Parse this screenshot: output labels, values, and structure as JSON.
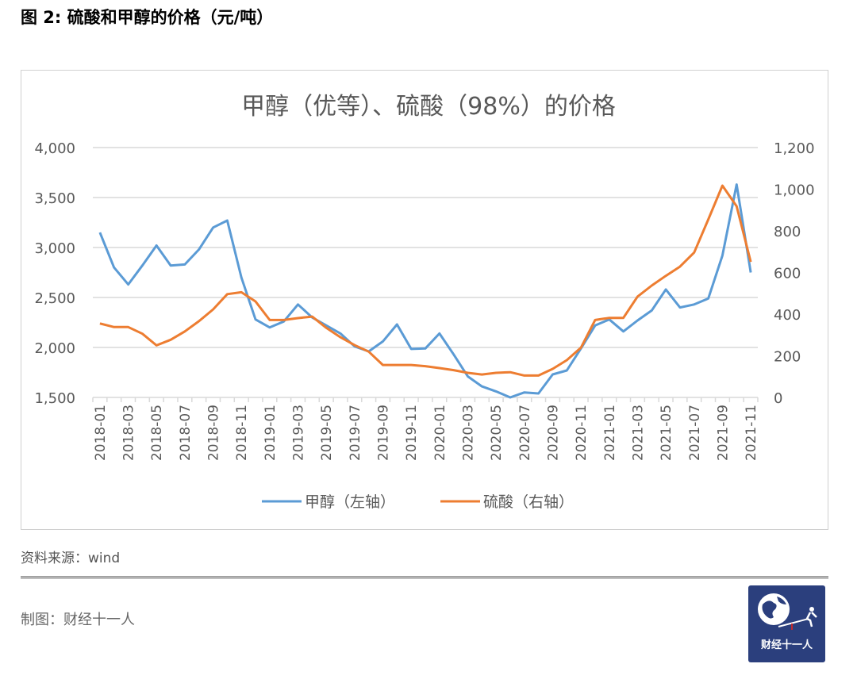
{
  "figure_title": "图 2: 硫酸和甲醇的价格（元/吨）",
  "source": "资料来源：wind",
  "credit": "制图：财经十一人",
  "logo_text": "财经十一人",
  "colors": {
    "methanol": "#5b9bd5",
    "sulfuric_acid": "#ed7d31",
    "grid": "#d9d9d9",
    "logo_bg": "#2b3f7d"
  },
  "chart_data": {
    "type": "line",
    "title": "甲醇（优等）、硫酸（98%）的价格",
    "legend_position": "bottom",
    "grid": true,
    "x": [
      "2018-01",
      "2018-02",
      "2018-03",
      "2018-04",
      "2018-05",
      "2018-06",
      "2018-07",
      "2018-08",
      "2018-09",
      "2018-10",
      "2018-11",
      "2018-12",
      "2019-01",
      "2019-02",
      "2019-03",
      "2019-04",
      "2019-05",
      "2019-06",
      "2019-07",
      "2019-08",
      "2019-09",
      "2019-10",
      "2019-11",
      "2019-12",
      "2020-01",
      "2020-02",
      "2020-03",
      "2020-04",
      "2020-05",
      "2020-06",
      "2020-07",
      "2020-08",
      "2020-09",
      "2020-10",
      "2020-11",
      "2020-12",
      "2021-01",
      "2021-02",
      "2021-03",
      "2021-04",
      "2021-05",
      "2021-06",
      "2021-07",
      "2021-08",
      "2021-09",
      "2021-10",
      "2021-11"
    ],
    "y_left": {
      "ylim": [
        1500,
        4000
      ],
      "ticks": [
        "1,500",
        "2,000",
        "2,500",
        "3,000",
        "3,500",
        "4,000"
      ]
    },
    "y_right": {
      "ylim": [
        0,
        1200
      ],
      "ticks": [
        "0",
        "200",
        "400",
        "600",
        "800",
        "1,000",
        "1,200"
      ]
    },
    "series": [
      {
        "name": "甲醇（左轴）",
        "axis": "left",
        "values": [
          3150,
          2800,
          2630,
          2820,
          3020,
          2820,
          2830,
          2980,
          3200,
          3270,
          2700,
          2280,
          2200,
          2260,
          2430,
          2300,
          2220,
          2140,
          2010,
          1960,
          2060,
          2230,
          1985,
          1990,
          2140,
          1930,
          1710,
          1610,
          1560,
          1500,
          1550,
          1540,
          1730,
          1770,
          1990,
          2220,
          2280,
          2160,
          2270,
          2370,
          2580,
          2400,
          2430,
          2490,
          2920,
          3630,
          2750
        ]
      },
      {
        "name": "硫酸（右轴）",
        "axis": "right",
        "values": [
          355,
          338,
          338,
          306,
          250,
          277,
          317,
          366,
          423,
          496,
          505,
          461,
          372,
          372,
          381,
          388,
          334,
          289,
          251,
          220,
          156,
          156,
          156,
          150,
          141,
          131,
          118,
          110,
          118,
          121,
          105,
          105,
          137,
          179,
          239,
          372,
          382,
          382,
          484,
          537,
          584,
          628,
          696,
          855,
          1017,
          918,
          651
        ]
      }
    ]
  }
}
